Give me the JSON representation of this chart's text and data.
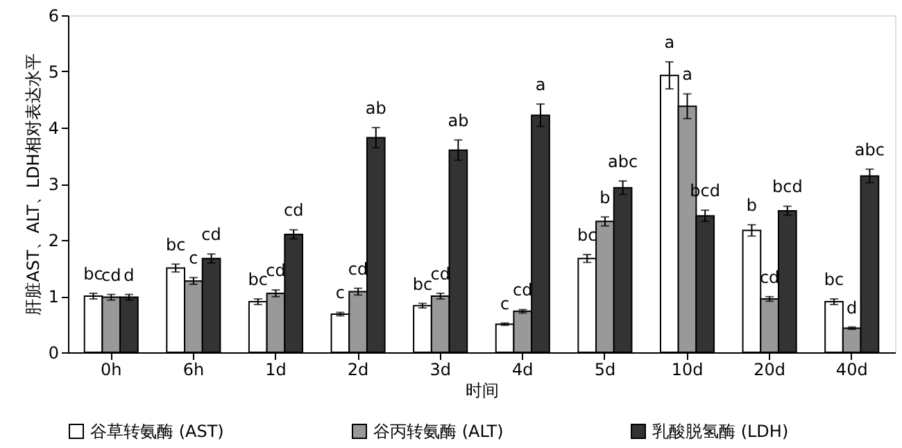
{
  "chart_data": {
    "type": "bar",
    "xlabel": "时间",
    "ylabel": "肝脏AST、ALT、LDH相对表达水平",
    "categories": [
      "0h",
      "6h",
      "1d",
      "2d",
      "3d",
      "4d",
      "5d",
      "10d",
      "20d",
      "40d"
    ],
    "series": [
      {
        "name": "谷草转氨酶 (AST)",
        "color": "#ffffff",
        "values": [
          1.0,
          1.5,
          0.9,
          0.68,
          0.83,
          0.5,
          1.67,
          4.93,
          2.17,
          0.9
        ],
        "errors": [
          0.05,
          0.07,
          0.05,
          0.03,
          0.04,
          0.02,
          0.07,
          0.24,
          0.1,
          0.05
        ],
        "value_labels": [
          "bc",
          "bc",
          "bc",
          "c",
          "bc",
          "c",
          "bc",
          "a",
          "b",
          "bc"
        ]
      },
      {
        "name": "谷丙转氨酶 (ALT)",
        "color": "#999999",
        "values": [
          0.98,
          1.27,
          1.05,
          1.08,
          1.0,
          0.73,
          2.33,
          4.38,
          0.95,
          0.43
        ],
        "errors": [
          0.05,
          0.06,
          0.06,
          0.06,
          0.05,
          0.03,
          0.08,
          0.22,
          0.04,
          0.02
        ],
        "value_labels": [
          "cd",
          "c",
          "cd",
          "cd",
          "cd",
          "cd",
          "b",
          "a",
          "cd",
          "d"
        ]
      },
      {
        "name": "乳酸脱氢酶 (LDH)",
        "color": "#333333",
        "values": [
          0.98,
          1.67,
          2.1,
          3.82,
          3.6,
          4.22,
          2.93,
          2.43,
          2.52,
          3.14
        ],
        "errors": [
          0.05,
          0.08,
          0.08,
          0.18,
          0.18,
          0.2,
          0.12,
          0.1,
          0.08,
          0.12
        ],
        "value_labels": [
          "d",
          "cd",
          "cd",
          "ab",
          "ab",
          "a",
          "abc",
          "bcd",
          "bcd",
          "abc"
        ]
      }
    ],
    "ylim": [
      0,
      6
    ],
    "yticks": [
      0,
      1,
      2,
      3,
      4,
      5,
      6
    ],
    "grid": false,
    "legend": "bottom"
  }
}
